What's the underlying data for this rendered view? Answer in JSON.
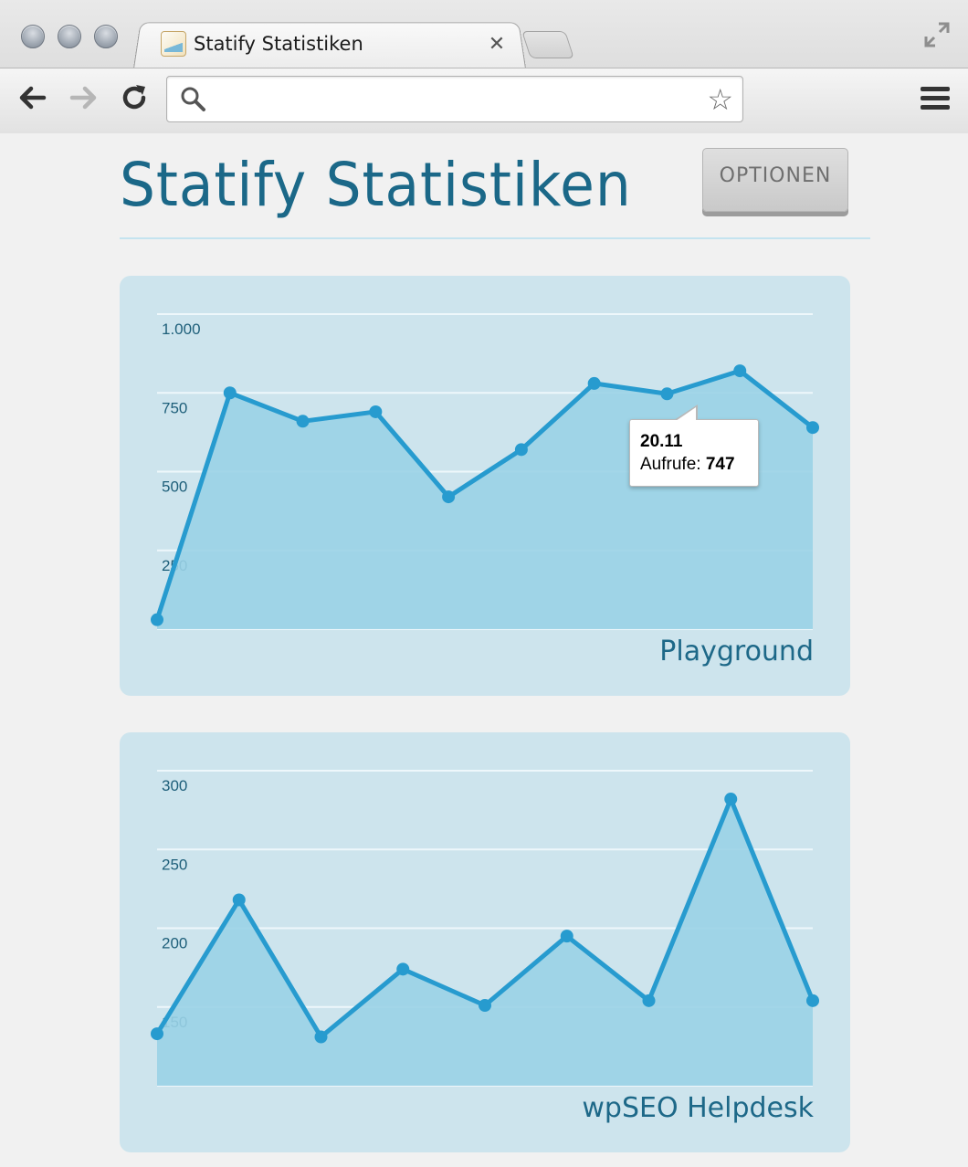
{
  "browser": {
    "tab": {
      "title": "Statify Statistiken",
      "close_glyph": "✕"
    },
    "omnibox": {
      "value": "",
      "placeholder": ""
    },
    "icons": [
      "back-icon",
      "forward-icon",
      "reload-icon",
      "search-icon",
      "star-icon",
      "menu-icon",
      "fullscreen-icon"
    ]
  },
  "page": {
    "title": "Statify Statistiken",
    "options_label": "OPTIONEN",
    "colors": {
      "title": "#1b6888",
      "card": "#cde4ed",
      "line": "#279bcf",
      "area": "#9ad1e5"
    }
  },
  "chart_data": [
    {
      "type": "area",
      "name": "Playground",
      "ylim": [
        0,
        1000
      ],
      "yticks": [
        250,
        500,
        750,
        1000
      ],
      "ytick_labels": [
        "250",
        "500",
        "750",
        "1.000"
      ],
      "values": [
        30,
        750,
        660,
        690,
        420,
        570,
        780,
        747,
        820,
        640
      ],
      "grid": true,
      "tooltip": {
        "date": "20.11",
        "label": "Aufrufe:",
        "value": "747"
      }
    },
    {
      "type": "area",
      "name": "wpSEO Helpdesk",
      "ylim": [
        100,
        300
      ],
      "yticks": [
        150,
        200,
        250,
        300
      ],
      "ytick_labels": [
        "150",
        "200",
        "250",
        "300"
      ],
      "values": [
        133,
        218,
        131,
        174,
        151,
        195,
        154,
        282,
        154
      ],
      "grid": true
    }
  ]
}
